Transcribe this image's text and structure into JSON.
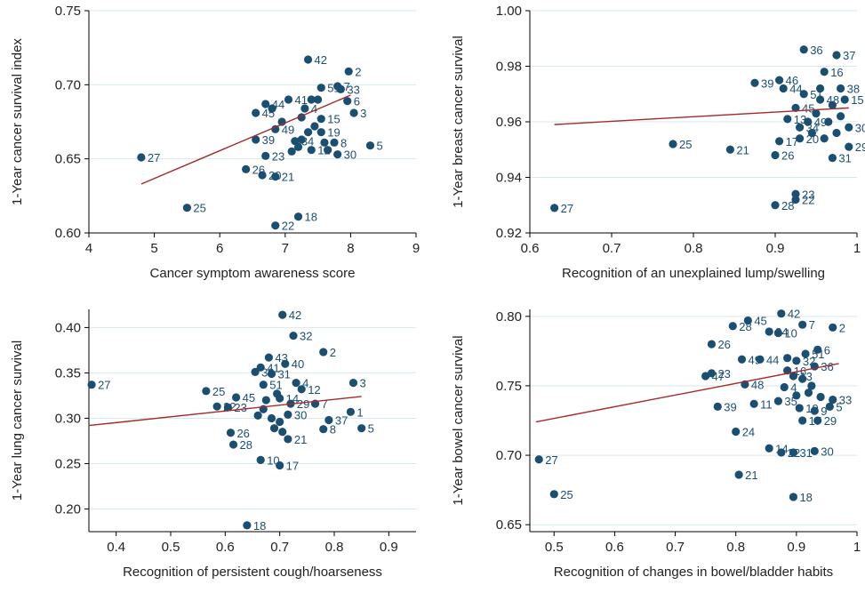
{
  "colors": {
    "point": "#1b4f72",
    "line": "#a52a2a",
    "grid": "#d6eaea",
    "axis": "#000000",
    "label": "#1b4f72"
  },
  "chart_data": [
    {
      "type": "scatter",
      "xlabel": "Cancer symptom awareness score",
      "ylabel": "1-Year cancer survival index",
      "xlim": [
        4,
        9
      ],
      "ylim": [
        0.6,
        0.75
      ],
      "xticks": [
        4,
        5,
        6,
        7,
        8,
        9
      ],
      "xtick_labels": [
        "4",
        "5",
        "6",
        "7",
        "8",
        "9"
      ],
      "yticks": [
        0.6,
        0.65,
        0.7,
        0.75
      ],
      "ytick_labels": [
        "0.60",
        "0.65",
        "0.70",
        "0.75"
      ],
      "grid": true,
      "trend": {
        "x": [
          4.8,
          8.0
        ],
        "y": [
          0.633,
          0.693
        ]
      },
      "points": [
        {
          "x": 7.35,
          "y": 0.717,
          "label": "42"
        },
        {
          "x": 7.97,
          "y": 0.709,
          "label": "2"
        },
        {
          "x": 7.8,
          "y": 0.699,
          "label": "7"
        },
        {
          "x": 7.85,
          "y": 0.697,
          "label": "33"
        },
        {
          "x": 7.55,
          "y": 0.698,
          "label": "51"
        },
        {
          "x": 7.05,
          "y": 0.69,
          "label": "41"
        },
        {
          "x": 6.7,
          "y": 0.687,
          "label": "44"
        },
        {
          "x": 6.55,
          "y": 0.681,
          "label": "45"
        },
        {
          "x": 7.95,
          "y": 0.689,
          "label": "6"
        },
        {
          "x": 8.05,
          "y": 0.681,
          "label": "3"
        },
        {
          "x": 7.3,
          "y": 0.684,
          "label": "4"
        },
        {
          "x": 7.55,
          "y": 0.677,
          "label": "15"
        },
        {
          "x": 6.85,
          "y": 0.67,
          "label": "49"
        },
        {
          "x": 6.55,
          "y": 0.663,
          "label": "39"
        },
        {
          "x": 7.55,
          "y": 0.668,
          "label": "19"
        },
        {
          "x": 7.75,
          "y": 0.661,
          "label": "8"
        },
        {
          "x": 8.3,
          "y": 0.659,
          "label": "5"
        },
        {
          "x": 7.8,
          "y": 0.653,
          "label": "30"
        },
        {
          "x": 7.4,
          "y": 0.656,
          "label": "12"
        },
        {
          "x": 7.15,
          "y": 0.662,
          "label": "34"
        },
        {
          "x": 6.7,
          "y": 0.652,
          "label": "23"
        },
        {
          "x": 6.4,
          "y": 0.643,
          "label": "26"
        },
        {
          "x": 6.65,
          "y": 0.639,
          "label": "20"
        },
        {
          "x": 6.85,
          "y": 0.638,
          "label": "21"
        },
        {
          "x": 4.8,
          "y": 0.651,
          "label": "27"
        },
        {
          "x": 5.5,
          "y": 0.617,
          "label": "25"
        },
        {
          "x": 7.2,
          "y": 0.611,
          "label": "18"
        },
        {
          "x": 6.85,
          "y": 0.605,
          "label": "22"
        },
        {
          "x": 7.25,
          "y": 0.678,
          "label": ""
        },
        {
          "x": 7.45,
          "y": 0.672,
          "label": ""
        },
        {
          "x": 7.35,
          "y": 0.668,
          "label": ""
        },
        {
          "x": 7.6,
          "y": 0.661,
          "label": ""
        },
        {
          "x": 7.1,
          "y": 0.655,
          "label": ""
        },
        {
          "x": 7.25,
          "y": 0.663,
          "label": ""
        },
        {
          "x": 6.95,
          "y": 0.675,
          "label": ""
        },
        {
          "x": 7.5,
          "y": 0.69,
          "label": ""
        },
        {
          "x": 7.65,
          "y": 0.656,
          "label": ""
        },
        {
          "x": 7.4,
          "y": 0.69,
          "label": ""
        },
        {
          "x": 6.8,
          "y": 0.684,
          "label": ""
        },
        {
          "x": 7.2,
          "y": 0.658,
          "label": ""
        }
      ]
    },
    {
      "type": "scatter",
      "xlabel": "Recognition of an unexplained lump/swelling",
      "ylabel": "1-Year breast cancer survival",
      "xlim": [
        0.6,
        1.0
      ],
      "ylim": [
        0.92,
        1.0
      ],
      "xticks": [
        0.6,
        0.7,
        0.8,
        0.9,
        1.0
      ],
      "xtick_labels": [
        "0.6",
        "0.7",
        "0.8",
        "0.9",
        "1"
      ],
      "yticks": [
        0.92,
        0.94,
        0.96,
        0.98,
        1.0
      ],
      "ytick_labels": [
        "0.92",
        "0.94",
        "0.96",
        "0.98",
        "1.00"
      ],
      "grid": true,
      "trend": {
        "x": [
          0.63,
          0.99
        ],
        "y": [
          0.959,
          0.965
        ]
      },
      "points": [
        {
          "x": 0.935,
          "y": 0.986,
          "label": "36"
        },
        {
          "x": 0.975,
          "y": 0.984,
          "label": "37"
        },
        {
          "x": 0.96,
          "y": 0.978,
          "label": "16"
        },
        {
          "x": 0.875,
          "y": 0.974,
          "label": "39"
        },
        {
          "x": 0.905,
          "y": 0.975,
          "label": "46"
        },
        {
          "x": 0.91,
          "y": 0.972,
          "label": "44"
        },
        {
          "x": 0.935,
          "y": 0.97,
          "label": "51"
        },
        {
          "x": 0.955,
          "y": 0.968,
          "label": "48"
        },
        {
          "x": 0.98,
          "y": 0.972,
          "label": "38"
        },
        {
          "x": 0.985,
          "y": 0.968,
          "label": "15"
        },
        {
          "x": 0.925,
          "y": 0.965,
          "label": "45"
        },
        {
          "x": 0.915,
          "y": 0.961,
          "label": "13"
        },
        {
          "x": 0.94,
          "y": 0.96,
          "label": "49"
        },
        {
          "x": 0.93,
          "y": 0.958,
          "label": "34"
        },
        {
          "x": 0.99,
          "y": 0.958,
          "label": "30"
        },
        {
          "x": 0.905,
          "y": 0.953,
          "label": "17"
        },
        {
          "x": 0.93,
          "y": 0.954,
          "label": "20"
        },
        {
          "x": 0.99,
          "y": 0.951,
          "label": "29"
        },
        {
          "x": 0.97,
          "y": 0.947,
          "label": "31"
        },
        {
          "x": 0.775,
          "y": 0.952,
          "label": "25"
        },
        {
          "x": 0.845,
          "y": 0.95,
          "label": "21"
        },
        {
          "x": 0.9,
          "y": 0.948,
          "label": "26"
        },
        {
          "x": 0.925,
          "y": 0.934,
          "label": "23"
        },
        {
          "x": 0.925,
          "y": 0.932,
          "label": "22"
        },
        {
          "x": 0.9,
          "y": 0.93,
          "label": "28"
        },
        {
          "x": 0.63,
          "y": 0.929,
          "label": "27"
        },
        {
          "x": 0.95,
          "y": 0.963,
          "label": ""
        },
        {
          "x": 0.965,
          "y": 0.96,
          "label": ""
        },
        {
          "x": 0.975,
          "y": 0.956,
          "label": ""
        },
        {
          "x": 0.96,
          "y": 0.954,
          "label": ""
        },
        {
          "x": 0.97,
          "y": 0.966,
          "label": ""
        },
        {
          "x": 0.955,
          "y": 0.972,
          "label": ""
        },
        {
          "x": 0.945,
          "y": 0.956,
          "label": ""
        },
        {
          "x": 0.98,
          "y": 0.962,
          "label": ""
        }
      ]
    },
    {
      "type": "scatter",
      "xlabel": "Recognition of persistent cough/hoarseness",
      "ylabel": "1-Year lung cancer survival",
      "xlim": [
        0.35,
        0.95
      ],
      "ylim": [
        0.175,
        0.42
      ],
      "xticks": [
        0.4,
        0.5,
        0.6,
        0.7,
        0.8,
        0.9
      ],
      "xtick_labels": [
        "0.4",
        "0.5",
        "0.6",
        "0.7",
        "0.8",
        "0.9"
      ],
      "yticks": [
        0.2,
        0.25,
        0.3,
        0.35,
        0.4
      ],
      "ytick_labels": [
        "0.20",
        "0.25",
        "0.30",
        "0.35",
        "0.40"
      ],
      "grid": true,
      "trend": {
        "x": [
          0.35,
          0.85
        ],
        "y": [
          0.292,
          0.324
        ]
      },
      "points": [
        {
          "x": 0.705,
          "y": 0.414,
          "label": "42"
        },
        {
          "x": 0.725,
          "y": 0.391,
          "label": "32"
        },
        {
          "x": 0.78,
          "y": 0.373,
          "label": "2"
        },
        {
          "x": 0.68,
          "y": 0.367,
          "label": "43"
        },
        {
          "x": 0.71,
          "y": 0.36,
          "label": "40"
        },
        {
          "x": 0.665,
          "y": 0.356,
          "label": "41"
        },
        {
          "x": 0.655,
          "y": 0.351,
          "label": "39"
        },
        {
          "x": 0.685,
          "y": 0.349,
          "label": "31"
        },
        {
          "x": 0.67,
          "y": 0.337,
          "label": "51"
        },
        {
          "x": 0.73,
          "y": 0.339,
          "label": "4"
        },
        {
          "x": 0.835,
          "y": 0.339,
          "label": "3"
        },
        {
          "x": 0.74,
          "y": 0.332,
          "label": "12"
        },
        {
          "x": 0.565,
          "y": 0.33,
          "label": "25"
        },
        {
          "x": 0.62,
          "y": 0.323,
          "label": "45"
        },
        {
          "x": 0.7,
          "y": 0.322,
          "label": "14"
        },
        {
          "x": 0.72,
          "y": 0.316,
          "label": "29"
        },
        {
          "x": 0.765,
          "y": 0.316,
          "label": "7"
        },
        {
          "x": 0.585,
          "y": 0.313,
          "label": "22"
        },
        {
          "x": 0.605,
          "y": 0.312,
          "label": "23"
        },
        {
          "x": 0.715,
          "y": 0.304,
          "label": "30"
        },
        {
          "x": 0.83,
          "y": 0.307,
          "label": "1"
        },
        {
          "x": 0.79,
          "y": 0.298,
          "label": "37"
        },
        {
          "x": 0.85,
          "y": 0.289,
          "label": "5"
        },
        {
          "x": 0.78,
          "y": 0.288,
          "label": "8"
        },
        {
          "x": 0.61,
          "y": 0.284,
          "label": "26"
        },
        {
          "x": 0.615,
          "y": 0.271,
          "label": "28"
        },
        {
          "x": 0.715,
          "y": 0.277,
          "label": "21"
        },
        {
          "x": 0.665,
          "y": 0.254,
          "label": "10"
        },
        {
          "x": 0.7,
          "y": 0.248,
          "label": "17"
        },
        {
          "x": 0.64,
          "y": 0.182,
          "label": "18"
        },
        {
          "x": 0.355,
          "y": 0.337,
          "label": "27"
        },
        {
          "x": 0.67,
          "y": 0.31,
          "label": ""
        },
        {
          "x": 0.685,
          "y": 0.3,
          "label": ""
        },
        {
          "x": 0.69,
          "y": 0.289,
          "label": ""
        },
        {
          "x": 0.7,
          "y": 0.296,
          "label": ""
        },
        {
          "x": 0.675,
          "y": 0.32,
          "label": ""
        },
        {
          "x": 0.695,
          "y": 0.327,
          "label": ""
        },
        {
          "x": 0.66,
          "y": 0.303,
          "label": ""
        },
        {
          "x": 0.705,
          "y": 0.285,
          "label": ""
        }
      ]
    },
    {
      "type": "scatter",
      "xlabel": "Recognition of changes in bowel/bladder habits",
      "ylabel": "1-Year bowel cancer survival",
      "xlim": [
        0.46,
        1.0
      ],
      "ylim": [
        0.645,
        0.805
      ],
      "xticks": [
        0.5,
        0.6,
        0.7,
        0.8,
        0.9,
        1.0
      ],
      "xtick_labels": [
        "0.5",
        "0.6",
        "0.7",
        "0.8",
        "0.9",
        "1"
      ],
      "yticks": [
        0.65,
        0.7,
        0.75,
        0.8
      ],
      "ytick_labels": [
        "0.65",
        "0.70",
        "0.75",
        "0.80"
      ],
      "grid": true,
      "trend": {
        "x": [
          0.47,
          0.97
        ],
        "y": [
          0.724,
          0.766
        ]
      },
      "points": [
        {
          "x": 0.875,
          "y": 0.802,
          "label": "42"
        },
        {
          "x": 0.82,
          "y": 0.797,
          "label": "45"
        },
        {
          "x": 0.795,
          "y": 0.793,
          "label": "28"
        },
        {
          "x": 0.91,
          "y": 0.794,
          "label": "7"
        },
        {
          "x": 0.96,
          "y": 0.792,
          "label": "2"
        },
        {
          "x": 0.855,
          "y": 0.789,
          "label": "34"
        },
        {
          "x": 0.87,
          "y": 0.788,
          "label": "10"
        },
        {
          "x": 0.76,
          "y": 0.78,
          "label": "26"
        },
        {
          "x": 0.915,
          "y": 0.773,
          "label": "51"
        },
        {
          "x": 0.935,
          "y": 0.776,
          "label": "6"
        },
        {
          "x": 0.84,
          "y": 0.769,
          "label": "44"
        },
        {
          "x": 0.81,
          "y": 0.769,
          "label": "49"
        },
        {
          "x": 0.9,
          "y": 0.768,
          "label": "32"
        },
        {
          "x": 0.885,
          "y": 0.761,
          "label": "16"
        },
        {
          "x": 0.93,
          "y": 0.764,
          "label": "36"
        },
        {
          "x": 0.75,
          "y": 0.757,
          "label": "47"
        },
        {
          "x": 0.76,
          "y": 0.759,
          "label": "23"
        },
        {
          "x": 0.895,
          "y": 0.757,
          "label": "13"
        },
        {
          "x": 0.815,
          "y": 0.751,
          "label": "48"
        },
        {
          "x": 0.88,
          "y": 0.749,
          "label": "4"
        },
        {
          "x": 0.96,
          "y": 0.74,
          "label": "33"
        },
        {
          "x": 0.77,
          "y": 0.735,
          "label": "39"
        },
        {
          "x": 0.83,
          "y": 0.737,
          "label": "11"
        },
        {
          "x": 0.87,
          "y": 0.739,
          "label": "35"
        },
        {
          "x": 0.905,
          "y": 0.734,
          "label": "19"
        },
        {
          "x": 0.93,
          "y": 0.732,
          "label": "9"
        },
        {
          "x": 0.955,
          "y": 0.735,
          "label": "5"
        },
        {
          "x": 0.91,
          "y": 0.725,
          "label": "17"
        },
        {
          "x": 0.935,
          "y": 0.725,
          "label": "29"
        },
        {
          "x": 0.8,
          "y": 0.717,
          "label": "24"
        },
        {
          "x": 0.855,
          "y": 0.705,
          "label": "14"
        },
        {
          "x": 0.875,
          "y": 0.702,
          "label": "22"
        },
        {
          "x": 0.895,
          "y": 0.702,
          "label": "31"
        },
        {
          "x": 0.93,
          "y": 0.703,
          "label": "30"
        },
        {
          "x": 0.805,
          "y": 0.686,
          "label": "21"
        },
        {
          "x": 0.895,
          "y": 0.67,
          "label": "18"
        },
        {
          "x": 0.475,
          "y": 0.697,
          "label": "27"
        },
        {
          "x": 0.5,
          "y": 0.672,
          "label": "25"
        },
        {
          "x": 0.92,
          "y": 0.745,
          "label": ""
        },
        {
          "x": 0.94,
          "y": 0.742,
          "label": ""
        },
        {
          "x": 0.9,
          "y": 0.743,
          "label": ""
        },
        {
          "x": 0.885,
          "y": 0.77,
          "label": ""
        },
        {
          "x": 0.91,
          "y": 0.755,
          "label": ""
        },
        {
          "x": 0.925,
          "y": 0.75,
          "label": ""
        }
      ]
    }
  ]
}
